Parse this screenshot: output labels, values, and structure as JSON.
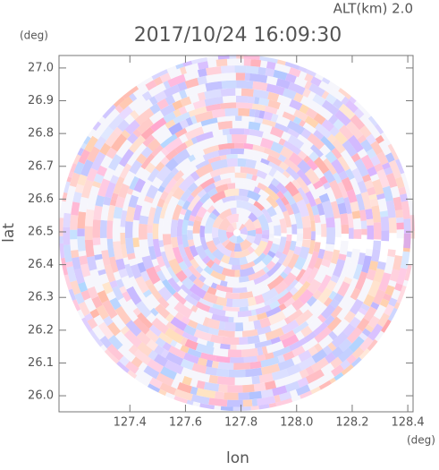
{
  "chart_data": {
    "type": "radar-ppi",
    "title": "2017/10/24 16:09:30",
    "subtitle": "ALT(km) 2.0",
    "x_label": "lon",
    "y_label": "lat",
    "x_unit": "(deg)",
    "y_unit": "(deg)",
    "xlim": [
      127.145,
      128.419
    ],
    "ylim": [
      25.951,
      27.038
    ],
    "xticks": [
      127.4,
      127.6,
      127.8,
      {
        "value": 128,
        "label": "128.0"
      },
      128.2,
      128.4
    ],
    "yticks": [
      {
        "value": 26,
        "label": "26.0"
      },
      26.1,
      26.2,
      26.3,
      26.4,
      26.5,
      26.6,
      26.7,
      26.8,
      26.9,
      {
        "value": 27,
        "label": "27.0"
      }
    ]
  }
}
